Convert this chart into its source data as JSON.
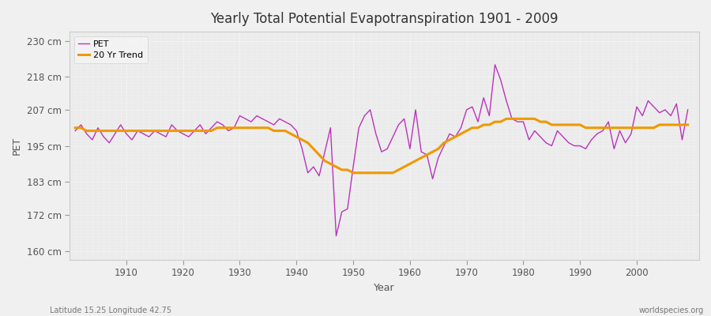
{
  "title": "Yearly Total Potential Evapotranspiration 1901 - 2009",
  "xlabel": "Year",
  "ylabel": "PET",
  "footnote_left": "Latitude 15.25 Longitude 42.75",
  "footnote_right": "worldspecies.org",
  "background_color": "#f0f0f0",
  "plot_bg_color": "#ebebeb",
  "pet_color": "#bb33bb",
  "trend_color": "#ee9900",
  "yticks": [
    160,
    172,
    183,
    195,
    207,
    218,
    230
  ],
  "ytick_labels": [
    "160 cm",
    "172 cm",
    "183 cm",
    "195 cm",
    "207 cm",
    "218 cm",
    "230 cm"
  ],
  "ylim": [
    157,
    233
  ],
  "xlim": [
    1900,
    2011
  ],
  "xticks": [
    1910,
    1920,
    1930,
    1940,
    1950,
    1960,
    1970,
    1980,
    1990,
    2000
  ],
  "years": [
    1901,
    1902,
    1903,
    1904,
    1905,
    1906,
    1907,
    1908,
    1909,
    1910,
    1911,
    1912,
    1913,
    1914,
    1915,
    1916,
    1917,
    1918,
    1919,
    1920,
    1921,
    1922,
    1923,
    1924,
    1925,
    1926,
    1927,
    1928,
    1929,
    1930,
    1931,
    1932,
    1933,
    1934,
    1935,
    1936,
    1937,
    1938,
    1939,
    1940,
    1941,
    1942,
    1943,
    1944,
    1945,
    1946,
    1947,
    1948,
    1949,
    1950,
    1951,
    1952,
    1953,
    1954,
    1955,
    1956,
    1957,
    1958,
    1959,
    1960,
    1961,
    1962,
    1963,
    1964,
    1965,
    1966,
    1967,
    1968,
    1969,
    1970,
    1971,
    1972,
    1973,
    1974,
    1975,
    1976,
    1977,
    1978,
    1979,
    1980,
    1981,
    1982,
    1983,
    1984,
    1985,
    1986,
    1987,
    1988,
    1989,
    1990,
    1991,
    1992,
    1993,
    1994,
    1995,
    1996,
    1997,
    1998,
    1999,
    2000,
    2001,
    2002,
    2003,
    2004,
    2005,
    2006,
    2007,
    2008,
    2009
  ],
  "pet_values": [
    200,
    202,
    199,
    197,
    201,
    198,
    196,
    199,
    202,
    199,
    197,
    200,
    199,
    198,
    200,
    199,
    198,
    202,
    200,
    199,
    198,
    200,
    202,
    199,
    201,
    203,
    202,
    200,
    201,
    205,
    204,
    203,
    205,
    204,
    203,
    202,
    204,
    203,
    202,
    200,
    194,
    186,
    188,
    185,
    193,
    201,
    165,
    173,
    174,
    188,
    201,
    205,
    207,
    199,
    193,
    194,
    198,
    202,
    204,
    194,
    207,
    193,
    192,
    184,
    191,
    195,
    199,
    198,
    201,
    207,
    208,
    203,
    211,
    205,
    222,
    217,
    210,
    204,
    203,
    203,
    197,
    200,
    198,
    196,
    195,
    200,
    198,
    196,
    195,
    195,
    194,
    197,
    199,
    200,
    203,
    194,
    200,
    196,
    199,
    208,
    205,
    210,
    208,
    206,
    207,
    205,
    209,
    197,
    207
  ],
  "trend_values": [
    201,
    201,
    200,
    200,
    200,
    200,
    200,
    200,
    200,
    200,
    200,
    200,
    200,
    200,
    200,
    200,
    200,
    200,
    200,
    200,
    200,
    200,
    200,
    200,
    200,
    201,
    201,
    201,
    201,
    201,
    201,
    201,
    201,
    201,
    201,
    200,
    200,
    200,
    199,
    198,
    197,
    196,
    194,
    192,
    190,
    189,
    188,
    187,
    187,
    186,
    186,
    186,
    186,
    186,
    186,
    186,
    186,
    187,
    188,
    189,
    190,
    191,
    192,
    193,
    194,
    196,
    197,
    198,
    199,
    200,
    201,
    201,
    202,
    202,
    203,
    203,
    204,
    204,
    204,
    204,
    204,
    204,
    203,
    203,
    202,
    202,
    202,
    202,
    202,
    202,
    201,
    201,
    201,
    201,
    201,
    201,
    201,
    201,
    201,
    201,
    201,
    201,
    201,
    202,
    202,
    202,
    202,
    202,
    202
  ]
}
